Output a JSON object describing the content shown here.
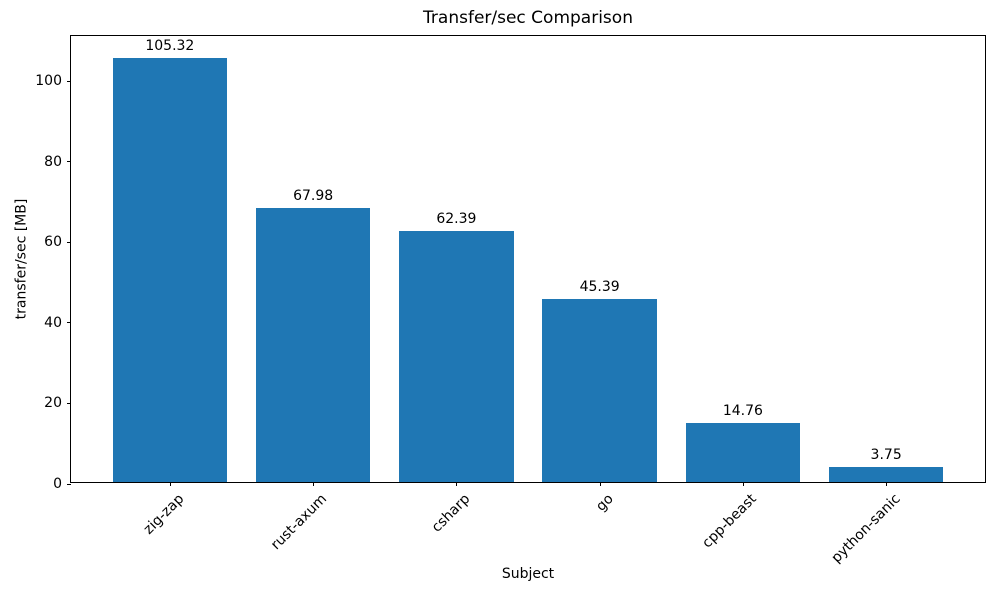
{
  "chart_data": {
    "type": "bar",
    "title": "Transfer/sec Comparison",
    "xlabel": "Subject",
    "ylabel": "transfer/sec [MB]",
    "categories": [
      "zig-zap",
      "rust-axum",
      "csharp",
      "go",
      "cpp-beast",
      "python-sanic"
    ],
    "values": [
      105.32,
      67.98,
      62.39,
      45.39,
      14.76,
      3.75
    ],
    "value_labels": [
      "105.32",
      "67.98",
      "62.39",
      "45.39",
      "14.76",
      "3.75"
    ],
    "series_name": "transfer/sec [MB]",
    "y_ticks": [
      0,
      20,
      40,
      60,
      80,
      100
    ],
    "ylim": [
      0,
      111.3
    ],
    "xlim": [
      -0.69,
      5.69
    ],
    "bar_width_data_units": 0.8,
    "x_tick_rotation_deg": 45,
    "grid": false,
    "legend_position": "none",
    "bar_color": "#1f77b4",
    "axis_color": "#000000",
    "background_color": "#ffffff"
  }
}
